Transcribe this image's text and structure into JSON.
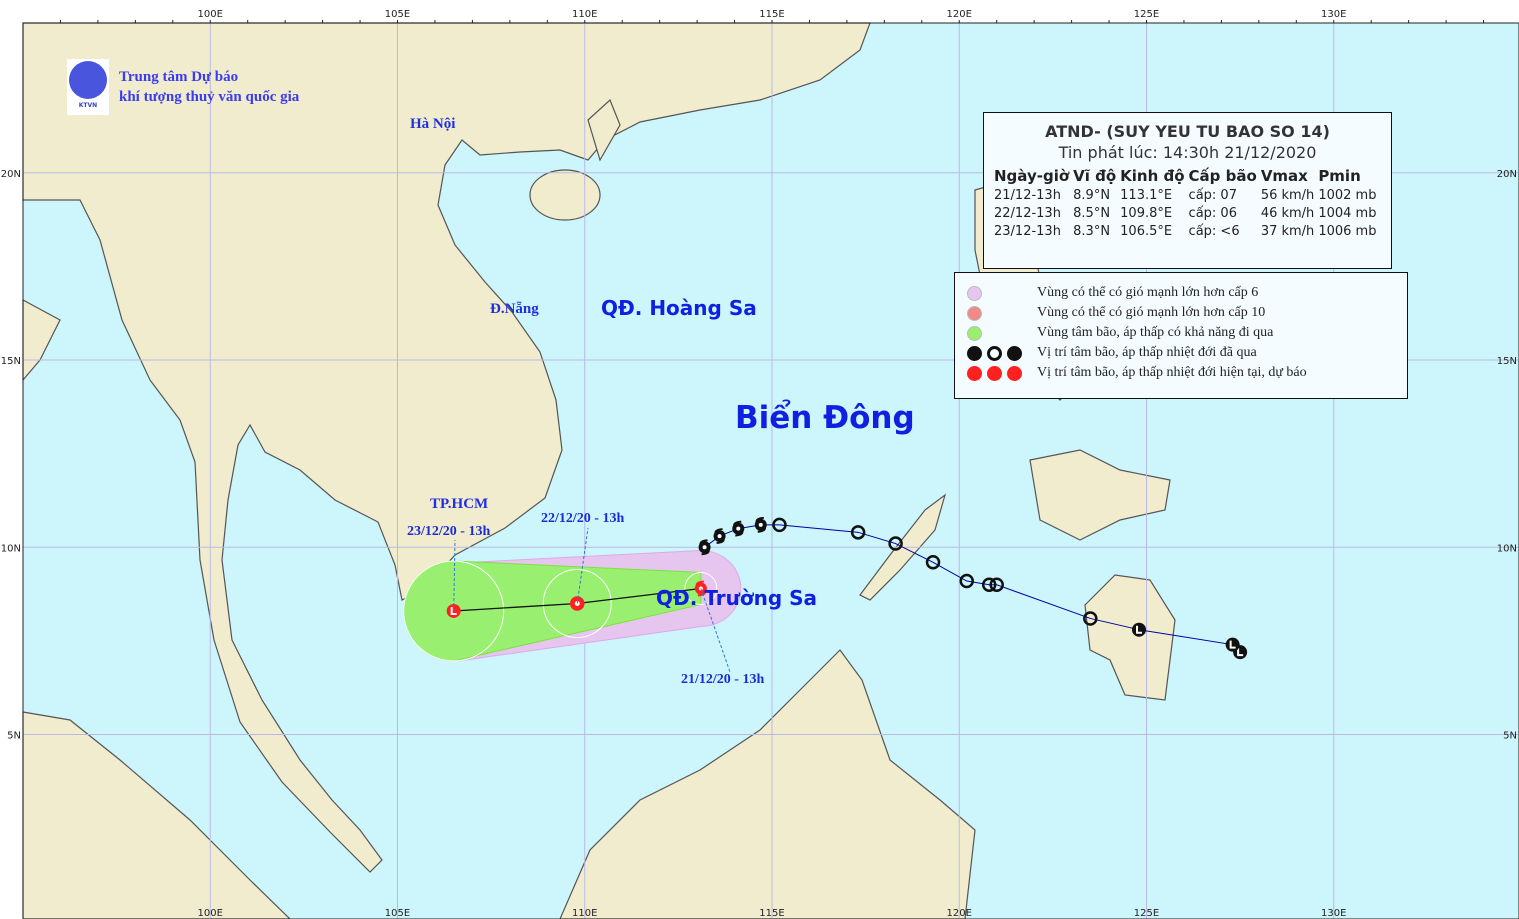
{
  "org": {
    "name_line1": "Trung tâm Dự báo",
    "name_line2": "khí tượng thuỷ văn quốc gia",
    "logo_text": "KTVN"
  },
  "axes": {
    "lon_ticks": [
      "100E",
      "105E",
      "110E",
      "115E",
      "120E",
      "125E",
      "130E"
    ],
    "lat_ticks": [
      "20N",
      "15N",
      "10N",
      "5N"
    ],
    "lon_values": [
      100,
      105,
      110,
      115,
      120,
      125,
      130
    ],
    "lat_values": [
      20,
      15,
      10,
      5
    ],
    "lon_range": [
      95,
      135
    ],
    "lat_range": [
      0,
      24
    ]
  },
  "places": {
    "hanoi": "Hà Nội",
    "danang": "Đ.Nẵng",
    "hcm": "TP.HCM",
    "hoangsa": "QĐ. Hoàng Sa",
    "truongsa": "QĐ. Trường Sa",
    "biendong": "Biển Đông"
  },
  "info": {
    "title": "ATND- (SUY YEU TU BAO SO 14)",
    "issued": "Tin phát lúc: 14:30h 21/12/2020",
    "headers": [
      "Ngày-giờ",
      "Vĩ độ",
      "Kinh độ",
      "Cấp bão",
      "Vmax",
      "Pmin"
    ],
    "rows": [
      [
        "21/12-13h",
        "8.9°N",
        "113.1°E",
        "cấp: 07",
        "56 km/h",
        "1002 mb"
      ],
      [
        "22/12-13h",
        "8.5°N",
        "109.8°E",
        "cấp: 06",
        "46 km/h",
        "1004 mb"
      ],
      [
        "23/12-13h",
        "8.3°N",
        "106.5°E",
        "cấp: <6",
        "37 km/h",
        "1006 mb"
      ]
    ]
  },
  "legend": [
    {
      "text": "Vùng có thể có gió mạnh lớn hơn cấp 6",
      "color": "#e6c6ee"
    },
    {
      "text": "Vùng có thể có gió mạnh lớn hơn cấp 10",
      "color": "#f08a8a"
    },
    {
      "text": "Vùng tâm bão, áp thấp có khả năng đi qua",
      "color": "#99f070"
    },
    {
      "text": "Vị trí tâm bão, áp thấp nhiệt đới đã qua",
      "color": "#111111"
    },
    {
      "text": "Vị trí tâm bão, áp thấp nhiệt đới hiện tại, dự báo",
      "color": "#ff2020"
    }
  ],
  "chart_data": {
    "type": "map-track",
    "past_track": [
      {
        "lon": 127.5,
        "lat": 7.2,
        "symbol": "L"
      },
      {
        "lon": 127.3,
        "lat": 7.4,
        "symbol": "L"
      },
      {
        "lon": 124.8,
        "lat": 7.8,
        "symbol": "L"
      },
      {
        "lon": 123.5,
        "lat": 8.1,
        "symbol": "O"
      },
      {
        "lon": 121.0,
        "lat": 9.0,
        "symbol": "O"
      },
      {
        "lon": 120.8,
        "lat": 9.0,
        "symbol": "O"
      },
      {
        "lon": 120.2,
        "lat": 9.1,
        "symbol": "O"
      },
      {
        "lon": 119.3,
        "lat": 9.6,
        "symbol": "O"
      },
      {
        "lon": 118.3,
        "lat": 10.1,
        "symbol": "O"
      },
      {
        "lon": 117.3,
        "lat": 10.4,
        "symbol": "O"
      },
      {
        "lon": 115.2,
        "lat": 10.6,
        "symbol": "O"
      },
      {
        "lon": 114.7,
        "lat": 10.6,
        "symbol": "storm"
      },
      {
        "lon": 114.1,
        "lat": 10.5,
        "symbol": "storm"
      },
      {
        "lon": 113.6,
        "lat": 10.3,
        "symbol": "storm"
      },
      {
        "lon": 113.2,
        "lat": 10.0,
        "symbol": "storm"
      }
    ],
    "forecast": [
      {
        "label": "21/12/20 - 13h",
        "lon": 113.1,
        "lat": 8.9,
        "symbol": "storm-current"
      },
      {
        "label": "22/12/20 - 13h",
        "lon": 109.8,
        "lat": 8.5,
        "symbol": "O"
      },
      {
        "label": "23/12/20 - 13h",
        "lon": 106.5,
        "lat": 8.3,
        "symbol": "L"
      }
    ],
    "colors": {
      "sea": "#ccf5fc",
      "land": "#f1ecce",
      "grid": "#b9b9e3",
      "cone_green": "#99f070",
      "cone_pink": "#e6c6ee",
      "past": "#111111",
      "forecast": "#ff2020",
      "track_line": "#0000a0"
    }
  }
}
